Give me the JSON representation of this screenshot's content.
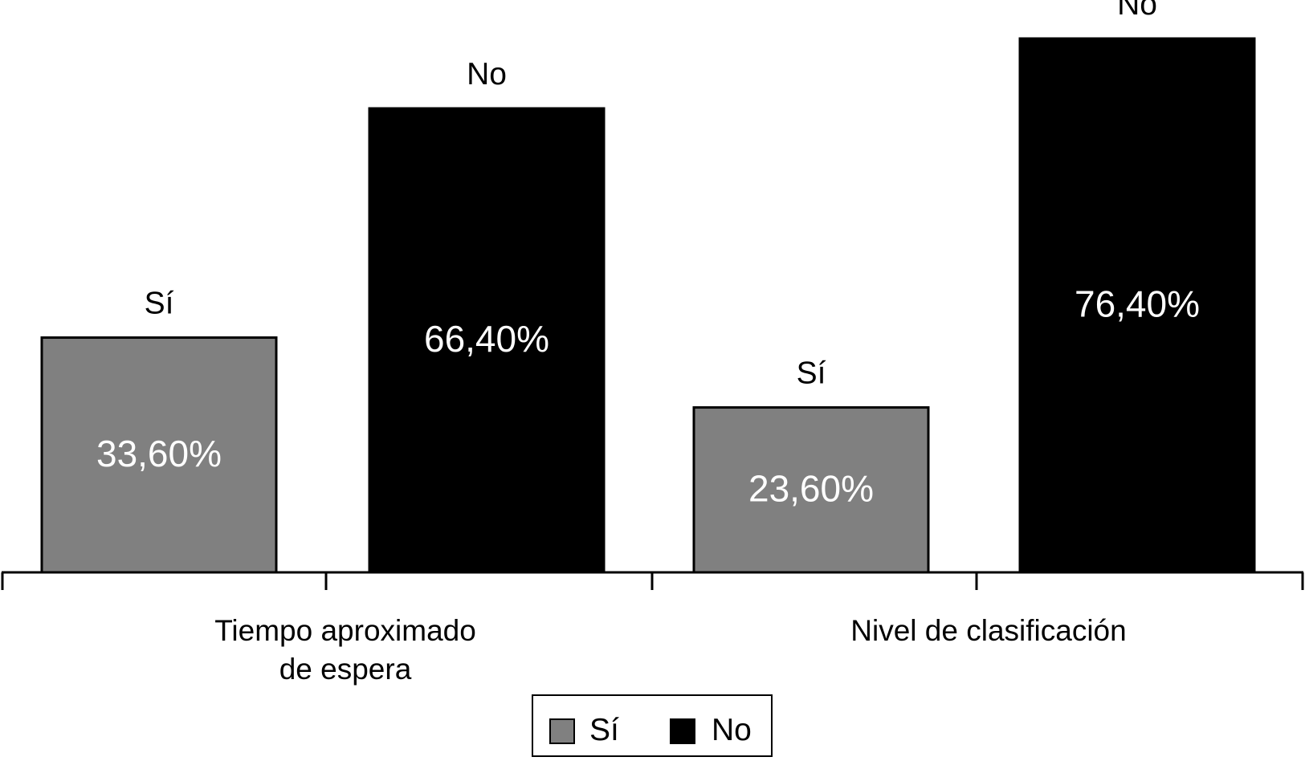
{
  "chart_data": {
    "type": "bar",
    "categories": [
      "Tiempo aproximado\nde espera",
      "Nivel de clasificación"
    ],
    "series": [
      {
        "name": "Sí",
        "values": [
          33.6,
          23.6
        ],
        "value_labels": [
          "33,60%",
          "23,60%"
        ],
        "color": "#808080",
        "value_label_color": "#ffffff"
      },
      {
        "name": "No",
        "values": [
          66.4,
          76.4
        ],
        "value_labels": [
          "66,40%",
          "76,40%"
        ],
        "color": "#000000",
        "value_label_color": "#ffffff"
      }
    ],
    "bar_top_labels": [
      "Sí",
      "No",
      "Sí",
      "No"
    ],
    "ylim": [
      0,
      100
    ],
    "legend": {
      "position": "bottom-center",
      "items": [
        "Sí",
        "No"
      ]
    },
    "grid": false,
    "title": "",
    "xlabel": "",
    "ylabel": ""
  }
}
